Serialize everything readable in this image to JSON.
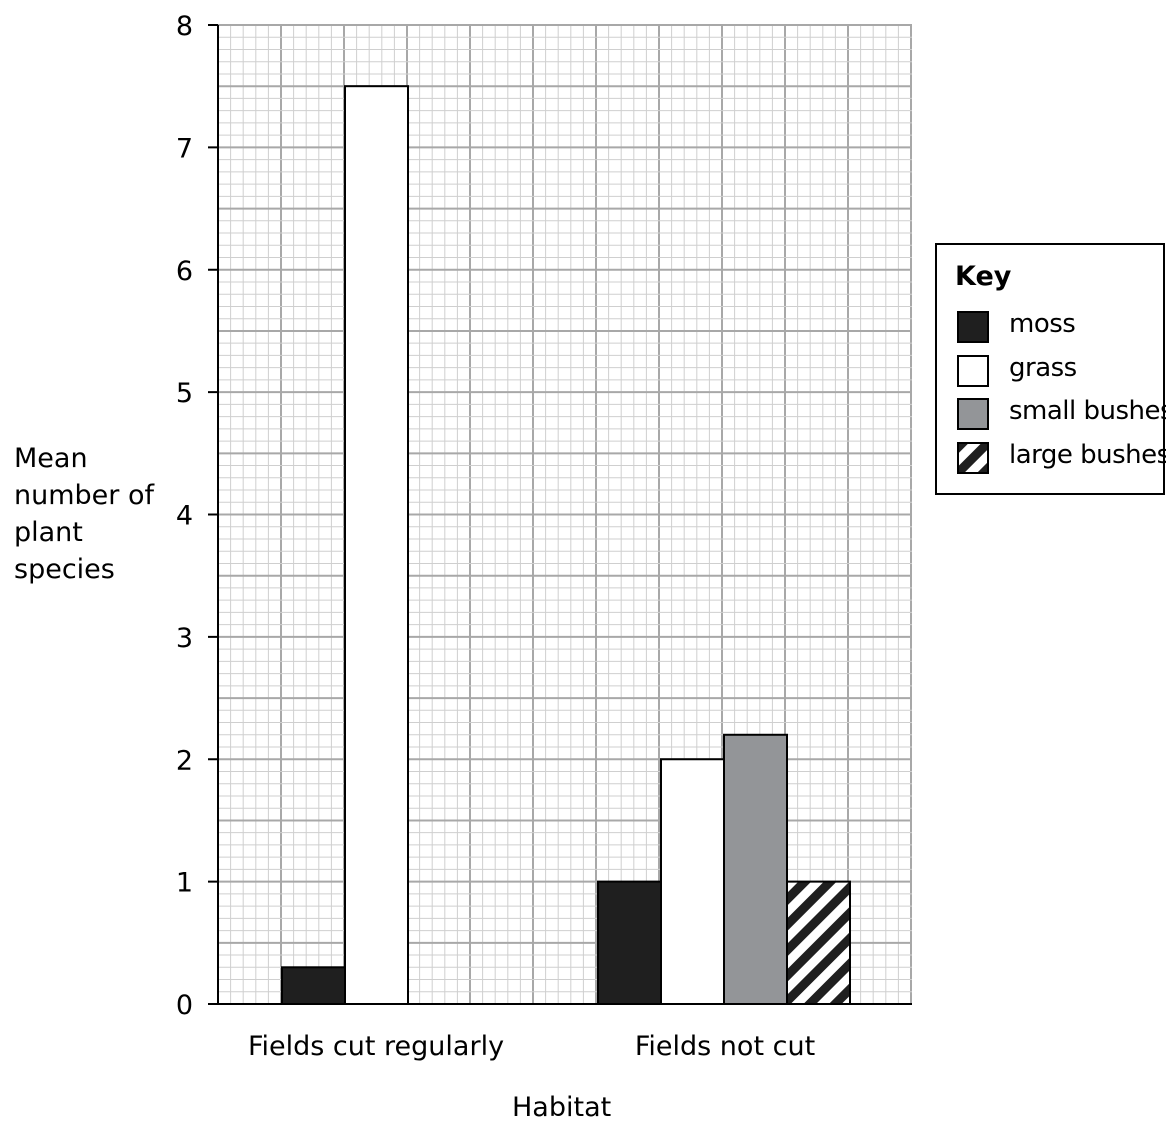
{
  "chart_data": {
    "type": "bar",
    "categories": [
      "Fields cut regularly",
      "Fields not cut"
    ],
    "xlabel": "Habitat",
    "ylabel": "Mean number of plant species",
    "ylim": [
      0,
      8
    ],
    "yticks": [
      "0",
      "1",
      "2",
      "3",
      "4",
      "5",
      "6",
      "7",
      "8"
    ],
    "grid": true,
    "legend_title": "Key",
    "legend_position": "right",
    "series": [
      {
        "name": "moss",
        "values": [
          0.3,
          1.0
        ],
        "color": "#1f1f1f",
        "pattern": "solid"
      },
      {
        "name": "grass",
        "values": [
          7.5,
          2.0
        ],
        "color": "#ffffff",
        "pattern": "solid"
      },
      {
        "name": "small bushes",
        "values": [
          null,
          2.2
        ],
        "color": "#939598",
        "pattern": "solid"
      },
      {
        "name": "large bushes",
        "values": [
          null,
          1.0
        ],
        "color": "#1f1f1f",
        "pattern": "hatch"
      }
    ]
  }
}
